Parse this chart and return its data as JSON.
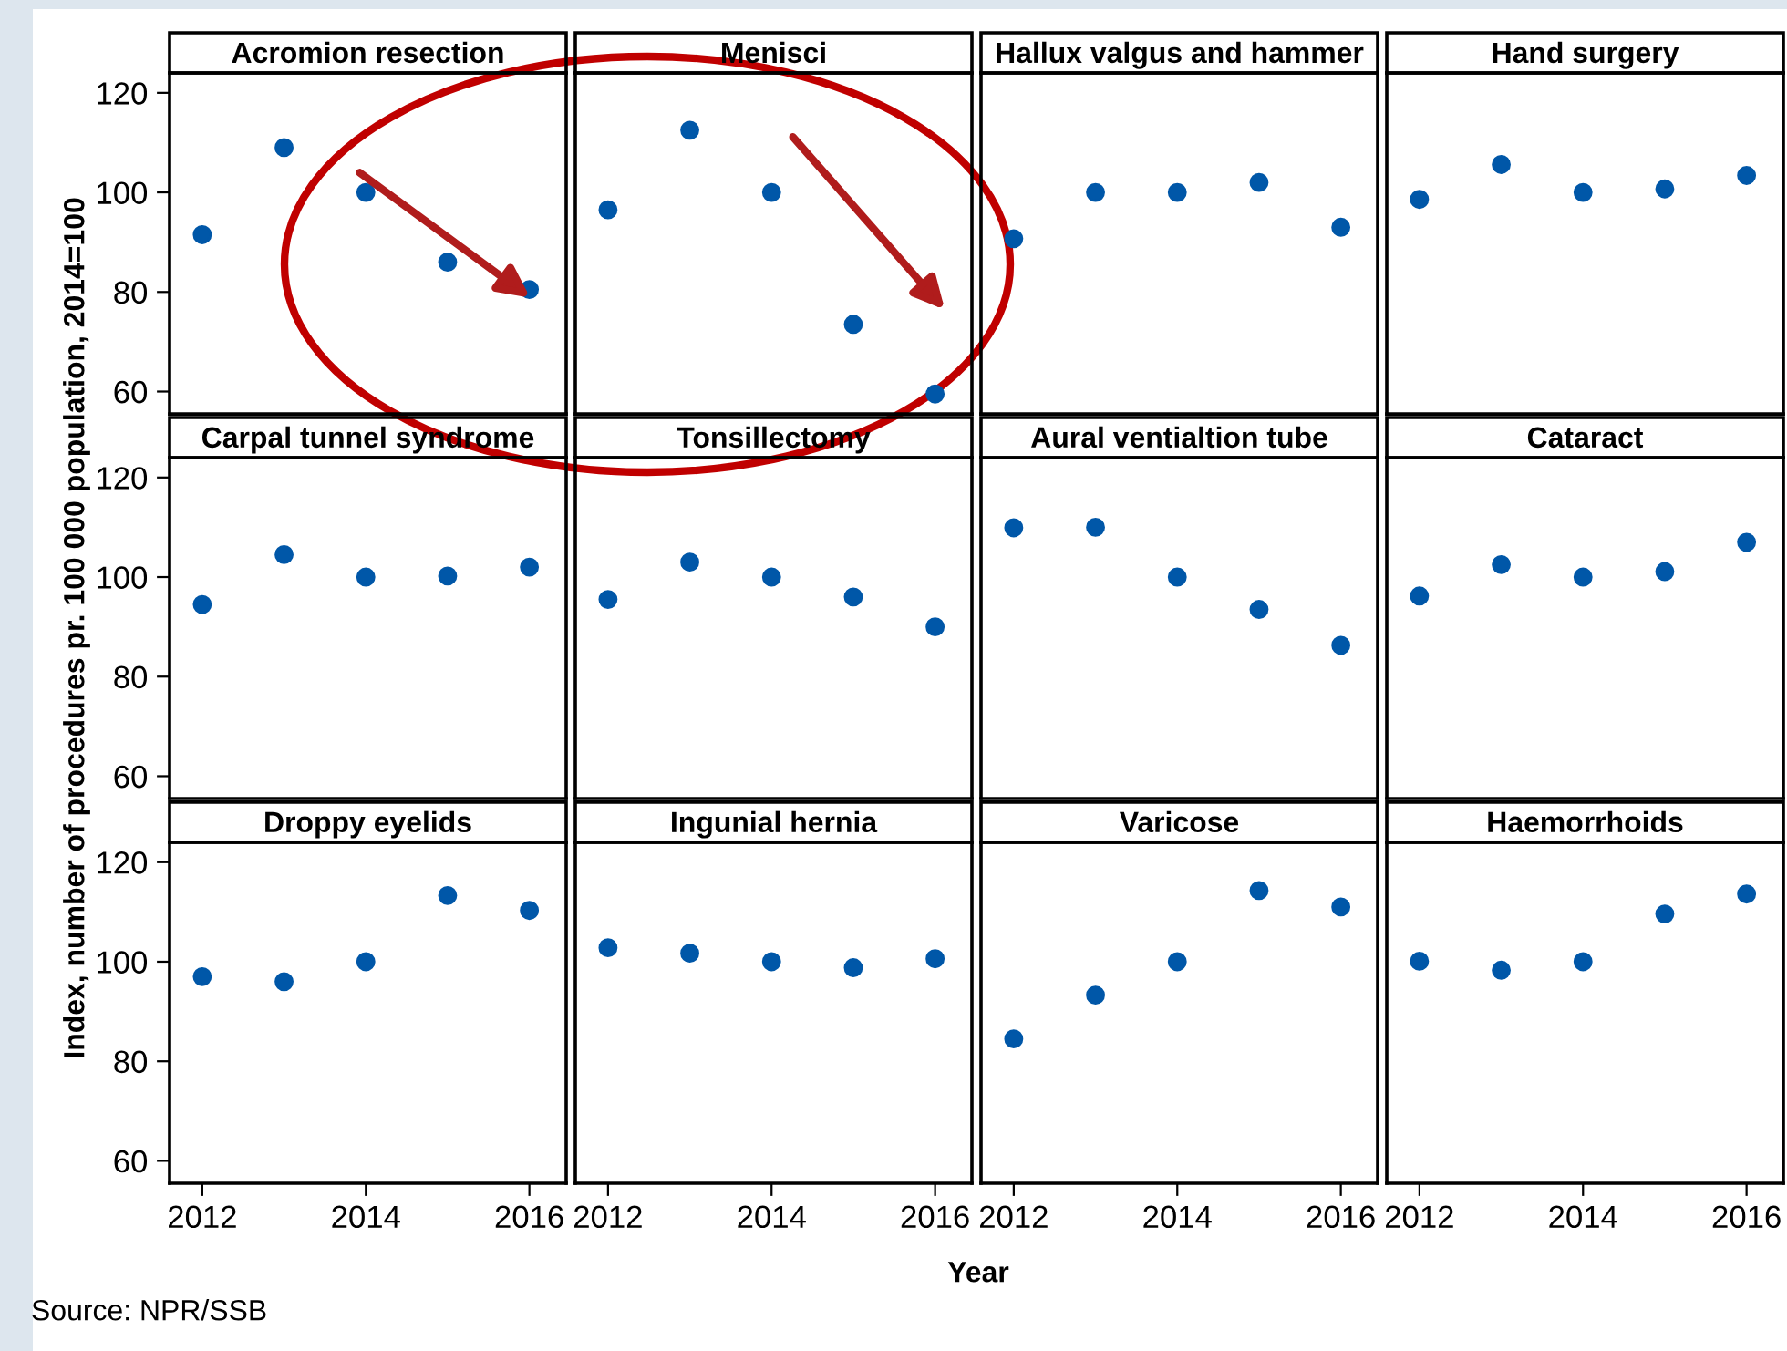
{
  "chart_data": [
    {
      "type": "scatter",
      "title": "Acromion resection",
      "ylabel": "Index, number of procedures pr. 100 000 population, 2014=100",
      "x": [
        2012,
        2013,
        2014,
        2015,
        2016
      ],
      "values": [
        91.5,
        109,
        100,
        86,
        80.5
      ],
      "color": "#0057a8",
      "marker": "circle",
      "xlim": [
        2011.6,
        2016.45
      ],
      "ylim": [
        55.5,
        124
      ],
      "xticks": [
        2012,
        2014,
        2016
      ],
      "yticks": [
        60,
        80,
        100,
        120
      ],
      "grid": false,
      "tick_labels": "y"
    },
    {
      "type": "scatter",
      "title": "Menisci",
      "x": [
        2012,
        2013,
        2014,
        2015,
        2016
      ],
      "values": [
        96.5,
        112.5,
        100,
        73.5,
        59.5
      ],
      "color": "#0057a8",
      "marker": "circle",
      "xlim": [
        2011.6,
        2016.45
      ],
      "ylim": [
        55.5,
        124
      ],
      "xticks": [
        2012,
        2014,
        2016
      ],
      "yticks": [
        60,
        80,
        100,
        120
      ],
      "grid": false,
      "tick_labels": false
    },
    {
      "type": "scatter",
      "title": "Hallux valgus and hammer",
      "x": [
        2012,
        2013,
        2014,
        2015,
        2016
      ],
      "values": [
        90.7,
        100,
        100,
        102,
        93
      ],
      "color": "#0057a8",
      "marker": "circle",
      "xlim": [
        2011.6,
        2016.45
      ],
      "ylim": [
        55.5,
        124
      ],
      "xticks": [
        2012,
        2014,
        2016
      ],
      "yticks": [
        60,
        80,
        100,
        120
      ],
      "grid": false,
      "tick_labels": false
    },
    {
      "type": "scatter",
      "title": "Hand surgery",
      "x": [
        2012,
        2013,
        2014,
        2015,
        2016
      ],
      "values": [
        98.6,
        105.6,
        100,
        100.7,
        103.4
      ],
      "color": "#0057a8",
      "marker": "circle",
      "xlim": [
        2011.6,
        2016.45
      ],
      "ylim": [
        55.5,
        124
      ],
      "xticks": [
        2012,
        2014,
        2016
      ],
      "yticks": [
        60,
        80,
        100,
        120
      ],
      "grid": false,
      "tick_labels": false
    },
    {
      "type": "scatter",
      "title": "Carpal tunnel syndrome",
      "x": [
        2012,
        2013,
        2014,
        2015,
        2016
      ],
      "values": [
        94.5,
        104.5,
        100,
        100.2,
        102
      ],
      "color": "#0057a8",
      "marker": "circle",
      "xlim": [
        2011.6,
        2016.45
      ],
      "ylim": [
        55.5,
        124
      ],
      "xticks": [
        2012,
        2014,
        2016
      ],
      "yticks": [
        60,
        80,
        100,
        120
      ],
      "grid": false,
      "tick_labels": "y"
    },
    {
      "type": "scatter",
      "title": "Tonsillectomy",
      "x": [
        2012,
        2013,
        2014,
        2015,
        2016
      ],
      "values": [
        95.5,
        103,
        100,
        96,
        90
      ],
      "color": "#0057a8",
      "marker": "circle",
      "xlim": [
        2011.6,
        2016.45
      ],
      "ylim": [
        55.5,
        124
      ],
      "xticks": [
        2012,
        2014,
        2016
      ],
      "yticks": [
        60,
        80,
        100,
        120
      ],
      "grid": false,
      "tick_labels": false
    },
    {
      "type": "scatter",
      "title": "Aural ventialtion tube",
      "x": [
        2012,
        2013,
        2014,
        2015,
        2016
      ],
      "values": [
        109.9,
        110,
        100,
        93.5,
        86.3
      ],
      "color": "#0057a8",
      "marker": "circle",
      "xlim": [
        2011.6,
        2016.45
      ],
      "ylim": [
        55.5,
        124
      ],
      "xticks": [
        2012,
        2014,
        2016
      ],
      "yticks": [
        60,
        80,
        100,
        120
      ],
      "grid": false,
      "tick_labels": false
    },
    {
      "type": "scatter",
      "title": "Cataract",
      "x": [
        2012,
        2013,
        2014,
        2015,
        2016
      ],
      "values": [
        96.2,
        102.5,
        100,
        101.1,
        107
      ],
      "color": "#0057a8",
      "marker": "circle",
      "xlim": [
        2011.6,
        2016.45
      ],
      "ylim": [
        55.5,
        124
      ],
      "xticks": [
        2012,
        2014,
        2016
      ],
      "yticks": [
        60,
        80,
        100,
        120
      ],
      "grid": false,
      "tick_labels": false
    },
    {
      "type": "scatter",
      "title": "Droppy eyelids",
      "annotations": [
        "Source: NPR/SSB"
      ],
      "x": [
        2012,
        2013,
        2014,
        2015,
        2016
      ],
      "values": [
        97,
        96,
        100,
        113.3,
        110.3
      ],
      "color": "#0057a8",
      "marker": "circle",
      "xlim": [
        2011.6,
        2016.45
      ],
      "ylim": [
        55.5,
        124
      ],
      "xticks": [
        2012,
        2014,
        2016
      ],
      "yticks": [
        60,
        80,
        100,
        120
      ],
      "grid": false
    },
    {
      "type": "scatter",
      "title": "Ingunial hernia",
      "xlabel": "Year",
      "x": [
        2012,
        2013,
        2014,
        2015,
        2016
      ],
      "values": [
        102.8,
        101.7,
        100,
        98.8,
        100.6
      ],
      "color": "#0057a8",
      "marker": "circle",
      "xlim": [
        2011.6,
        2016.45
      ],
      "ylim": [
        55.5,
        124
      ],
      "xticks": [
        2012,
        2014,
        2016
      ],
      "yticks": [
        60,
        80,
        100,
        120
      ],
      "grid": false,
      "tick_labels": "x"
    },
    {
      "type": "scatter",
      "title": "Varicose",
      "x": [
        2012,
        2013,
        2014,
        2015,
        2016
      ],
      "values": [
        84.5,
        93.3,
        100,
        114.3,
        111
      ],
      "color": "#0057a8",
      "marker": "circle",
      "xlim": [
        2011.6,
        2016.45
      ],
      "ylim": [
        55.5,
        124
      ],
      "xticks": [
        2012,
        2014,
        2016
      ],
      "yticks": [
        60,
        80,
        100,
        120
      ],
      "grid": false,
      "tick_labels": "x"
    },
    {
      "type": "scatter",
      "title": "Haemorrhoids",
      "x": [
        2012,
        2013,
        2014,
        2015,
        2016
      ],
      "values": [
        100.1,
        98.3,
        100,
        109.6,
        113.6
      ],
      "color": "#0057a8",
      "marker": "circle",
      "xlim": [
        2011.6,
        2016.45
      ],
      "ylim": [
        55.5,
        124
      ],
      "xticks": [
        2012,
        2014,
        2016
      ],
      "yticks": [
        60,
        80,
        100,
        120
      ],
      "grid": false,
      "tick_labels": "x"
    }
  ]
}
